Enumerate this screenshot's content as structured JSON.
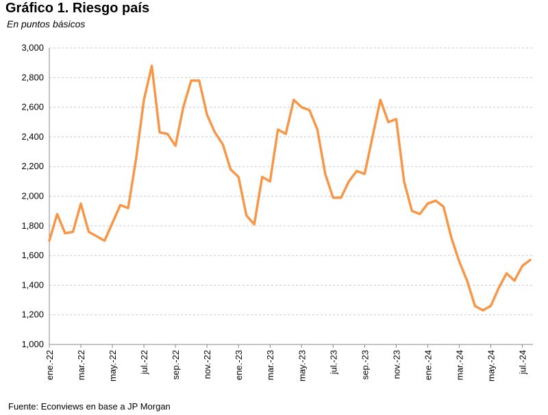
{
  "chart_data": {
    "type": "line",
    "title": "Gráfico 1. Riesgo país",
    "subtitle": "En puntos básicos",
    "source": "Fuente: Econviews en base a JP Morgan",
    "categories": [
      "ene.-22",
      null,
      null,
      null,
      "mar.-22",
      null,
      null,
      null,
      "may.-22",
      null,
      null,
      null,
      "jul.-22",
      null,
      null,
      null,
      "sep.-22",
      null,
      null,
      null,
      "nov.-22",
      null,
      null,
      null,
      "ene.-23",
      null,
      null,
      null,
      "mar.-23",
      null,
      null,
      null,
      "may.-23",
      null,
      null,
      null,
      "jul.-23",
      null,
      null,
      null,
      "sep.-23",
      null,
      null,
      null,
      "nov.-23",
      null,
      null,
      null,
      "ene.-24",
      null,
      null,
      null,
      "mar.-24",
      null,
      null,
      null,
      "may.-24",
      null,
      null,
      null,
      "jul.-24",
      null
    ],
    "series": [
      {
        "name": "Riesgo país",
        "color": "#f79646",
        "values": [
          1700,
          1880,
          1750,
          1760,
          1950,
          1760,
          1730,
          1700,
          1820,
          1940,
          1920,
          2250,
          2650,
          2880,
          2430,
          2420,
          2340,
          2600,
          2780,
          2780,
          2550,
          2430,
          2350,
          2180,
          2130,
          1870,
          1810,
          2130,
          2100,
          2450,
          2420,
          2650,
          2600,
          2580,
          2450,
          2150,
          1990,
          1990,
          2100,
          2170,
          2150,
          2400,
          2650,
          2500,
          2520,
          2100,
          1900,
          1880,
          1950,
          1970,
          1930,
          1720,
          1560,
          1430,
          1260,
          1230,
          1260,
          1380,
          1480,
          1430,
          1530,
          1570
        ]
      }
    ],
    "ylim": [
      1000,
      3000
    ],
    "yticks": [
      {
        "value": 1000,
        "label": "1,000"
      },
      {
        "value": 1200,
        "label": "1,200"
      },
      {
        "value": 1400,
        "label": "1,400"
      },
      {
        "value": 1600,
        "label": "1,600"
      },
      {
        "value": 1800,
        "label": "1,800"
      },
      {
        "value": 2000,
        "label": "2,000"
      },
      {
        "value": 2200,
        "label": "2,200"
      },
      {
        "value": 2400,
        "label": "2,400"
      },
      {
        "value": 2600,
        "label": "2,600"
      },
      {
        "value": 2800,
        "label": "2,800"
      },
      {
        "value": 3000,
        "label": "3,000"
      }
    ],
    "grid": true
  }
}
